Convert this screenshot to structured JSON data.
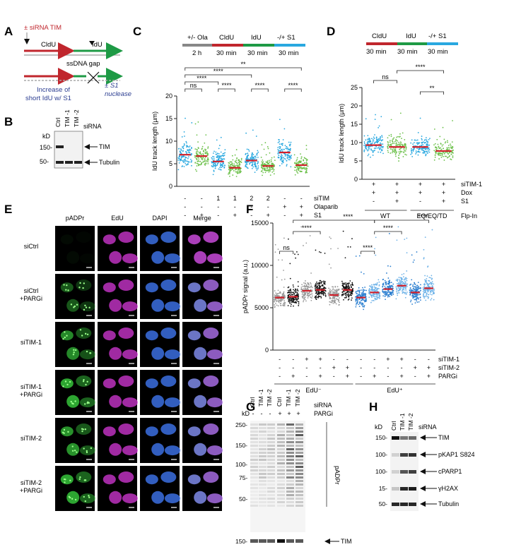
{
  "panels": {
    "A": {
      "letter": "A",
      "sirna_label": "± siRNA TIM",
      "cldu": "CldU",
      "idu": "IdU",
      "gap": "ssDNA gap",
      "nuclease": "± S1",
      "nuclease2": "nuclease",
      "caption1": "Increase of",
      "caption2": "short IdU w/ S1"
    },
    "B": {
      "letter": "B",
      "lanes": [
        "Ctrl",
        "TIM -1",
        "TIM -2"
      ],
      "group_label": "siRNA",
      "kd": "kD",
      "mw": [
        "150-",
        "50-"
      ],
      "targets": [
        "TIM",
        "Tubulin"
      ]
    },
    "C": {
      "letter": "C",
      "timeline": {
        "segs": [
          "+/- Ola",
          "CldU",
          "IdU",
          "-/+ S1"
        ],
        "times": [
          "2 h",
          "30 min",
          "30 min",
          "30 min"
        ]
      },
      "sig": [
        "**",
        "****",
        "ns",
        "****",
        "****",
        "****",
        "****"
      ],
      "row_labels": [
        "siTIM",
        "Olaparib",
        "S1"
      ],
      "rows": [
        [
          "-",
          "-",
          "1",
          "1",
          "2",
          "2",
          "-",
          "-"
        ],
        [
          "-",
          "-",
          "-",
          "-",
          "-",
          "-",
          "+",
          "+"
        ],
        [
          "-",
          "+",
          "-",
          "+",
          "-",
          "+",
          "-",
          "+"
        ]
      ]
    },
    "D": {
      "letter": "D",
      "timeline": {
        "segs": [
          "CldU",
          "IdU",
          "-/+ S1"
        ],
        "times": [
          "30 min",
          "30 min",
          "30 min"
        ]
      },
      "sig": [
        "ns",
        "****",
        "**"
      ],
      "row_labels": [
        "siTIM-1",
        "Dox",
        "S1",
        "Flp-In"
      ],
      "rows": [
        [
          "+",
          "+",
          "+",
          "+"
        ],
        [
          "+",
          "+",
          "+",
          "+"
        ],
        [
          "-",
          "+",
          "-",
          "+"
        ]
      ],
      "groups": [
        "WT",
        "EQ/EQ/TD"
      ]
    },
    "E": {
      "letter": "E",
      "columns": [
        "pADPr",
        "EdU",
        "DAPI",
        "Merge"
      ],
      "rows": [
        "siCtrl",
        "siCtrl\n+PARGi",
        "siTIM-1",
        "siTIM-1\n+PARGi",
        "siTIM-2",
        "siTIM-2\n+PARGi"
      ]
    },
    "F": {
      "letter": "F",
      "sig": [
        "ns",
        "****",
        "****",
        "****",
        "****",
        "****"
      ],
      "row_labels": [
        "siTIM-1",
        "siTIM-2",
        "PARGi"
      ],
      "rows": [
        [
          "-",
          "-",
          "+",
          "+",
          "-",
          "-",
          "-",
          "-",
          "+",
          "+",
          "-",
          "-"
        ],
        [
          "-",
          "-",
          "-",
          "-",
          "+",
          "+",
          "-",
          "-",
          "-",
          "-",
          "+",
          "+"
        ],
        [
          "-",
          "+",
          "-",
          "+",
          "-",
          "+",
          "-",
          "+",
          "-",
          "+",
          "-",
          "+"
        ]
      ],
      "groups": [
        "EdU⁻",
        "EdU⁺"
      ]
    },
    "G": {
      "letter": "G",
      "lanes": [
        "Ctrl",
        "TIM -1",
        "TIM -2",
        "Ctrl",
        "TIM -1",
        "TIM -2"
      ],
      "parg": [
        "-",
        "-",
        "-",
        "+",
        "+",
        "+"
      ],
      "group_label": "siRNA",
      "parg_label": "PARGi",
      "kd": "kD",
      "mw": [
        "250-",
        "150-",
        "100-",
        "75-",
        "50-",
        "150-"
      ],
      "right_label": "pADPr",
      "bottom_target": "TIM"
    },
    "H": {
      "letter": "H",
      "lanes": [
        "Ctrl",
        "TIM -1",
        "TIM -2"
      ],
      "group_label": "siRNA",
      "kd": "kD",
      "mw": [
        "150-",
        "100-",
        "100-",
        "15-",
        "50-"
      ],
      "targets": [
        "TIM",
        "pKAP1 S824",
        "cPARP1",
        "γH2AX",
        "Tubulin"
      ]
    }
  },
  "chart_data": [
    {
      "id": "C",
      "type": "scatter",
      "ylabel": "IdU track length (µm)",
      "ylim": [
        0,
        20
      ],
      "yticks": [
        0,
        5,
        10,
        15,
        20
      ],
      "series": [
        {
          "values_median": [
            7.0,
            6.7,
            5.5,
            4.1,
            5.7,
            4.5,
            7.5,
            4.7
          ]
        }
      ],
      "colors": [
        "#29a8e0",
        "#6cc04a"
      ]
    },
    {
      "id": "D",
      "type": "scatter",
      "ylabel": "IdU track length (µm)",
      "ylim": [
        0,
        25
      ],
      "yticks": [
        0,
        5,
        10,
        15,
        20,
        25
      ],
      "series": [
        {
          "values_median": [
            9.3,
            8.8,
            8.8,
            7.7
          ]
        }
      ],
      "colors": [
        "#29a8e0",
        "#6cc04a"
      ]
    },
    {
      "id": "F",
      "type": "scatter",
      "ylabel": "pADPr signal (a.u.)",
      "ylim": [
        0,
        15000
      ],
      "yticks": [
        0,
        5000,
        10000,
        15000
      ],
      "series": [
        {
          "values_median": [
            6200,
            6300,
            7000,
            7100,
            6500,
            7100,
            6200,
            6800,
            7200,
            7600,
            6800,
            7300
          ]
        }
      ],
      "colors": [
        "#9a9a9a",
        "#111111",
        "#2b7fd0",
        "#6fb3e8"
      ]
    }
  ]
}
